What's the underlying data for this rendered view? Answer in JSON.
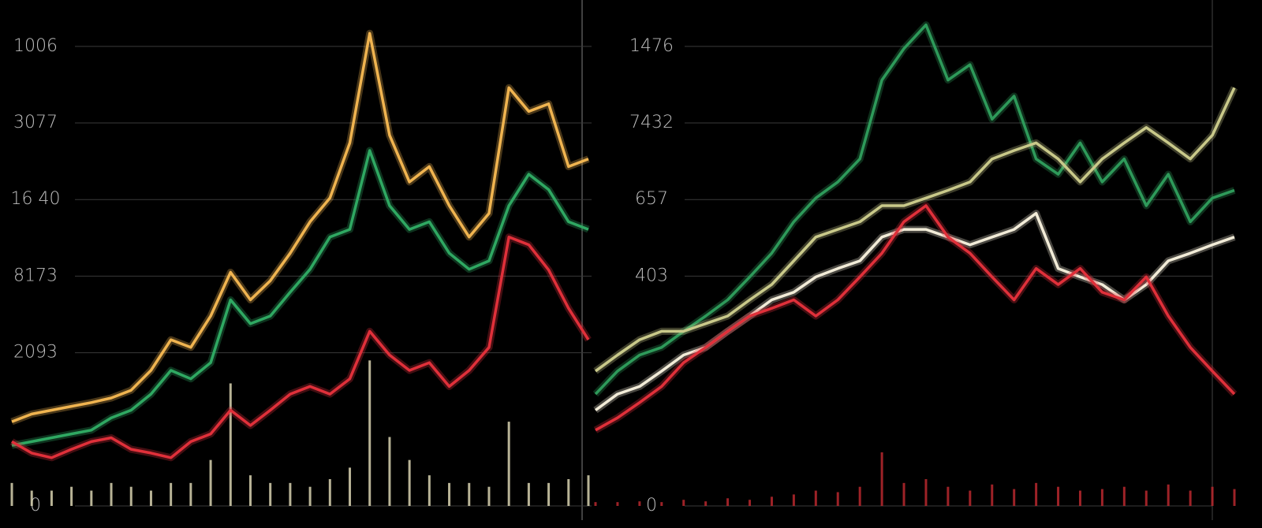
{
  "chart_data": [
    {
      "type": "line",
      "x": [
        0,
        1,
        2,
        3,
        4,
        5,
        6,
        7,
        8,
        9,
        10,
        11,
        12,
        13,
        14,
        15,
        16,
        17,
        18,
        19,
        20,
        21,
        22,
        23,
        24,
        25,
        26,
        27,
        28,
        29
      ],
      "xlim": [
        0,
        29
      ],
      "ylim": [
        0,
        6.6
      ],
      "yticks": [
        0,
        {
          "value": 2,
          "label": "2093"
        },
        {
          "value": 3,
          "label": "8173"
        },
        {
          "value": 4,
          "label": "16 40"
        },
        {
          "value": 5,
          "label": "3077"
        },
        {
          "value": 6,
          "label": "1006"
        }
      ],
      "grid": true,
      "series": [
        {
          "color": "#f0b450",
          "values": [
            1.1,
            1.2,
            1.25,
            1.3,
            1.35,
            1.41,
            1.51,
            1.77,
            2.17,
            2.07,
            2.48,
            3.05,
            2.69,
            2.94,
            3.3,
            3.71,
            4.02,
            4.74,
            6.17,
            4.84,
            4.23,
            4.43,
            3.92,
            3.51,
            3.82,
            5.46,
            5.15,
            5.25,
            4.43,
            4.53
          ]
        },
        {
          "color": "#2fa862",
          "values": [
            0.79,
            0.84,
            0.89,
            0.94,
            0.99,
            1.15,
            1.25,
            1.46,
            1.77,
            1.66,
            1.87,
            2.69,
            2.38,
            2.48,
            2.79,
            3.09,
            3.51,
            3.61,
            4.64,
            3.92,
            3.61,
            3.71,
            3.3,
            3.09,
            3.2,
            3.92,
            4.33,
            4.13,
            3.71,
            3.61
          ]
        },
        {
          "color": "#e0303a",
          "values": [
            0.84,
            0.69,
            0.63,
            0.74,
            0.84,
            0.89,
            0.74,
            0.69,
            0.63,
            0.84,
            0.94,
            1.25,
            1.05,
            1.25,
            1.46,
            1.56,
            1.46,
            1.66,
            2.28,
            1.97,
            1.77,
            1.87,
            1.56,
            1.77,
            2.07,
            3.51,
            3.41,
            3.08,
            2.58,
            2.17
          ]
        }
      ],
      "volume": {
        "color": "#d8d2b0",
        "values": [
          0.3,
          0.2,
          0.2,
          0.25,
          0.2,
          0.3,
          0.25,
          0.2,
          0.3,
          0.3,
          0.6,
          1.6,
          0.4,
          0.3,
          0.3,
          0.25,
          0.35,
          0.5,
          1.9,
          0.9,
          0.6,
          0.4,
          0.3,
          0.3,
          0.25,
          1.1,
          0.3,
          0.3,
          0.35,
          0.4
        ]
      }
    },
    {
      "type": "line",
      "x": [
        0,
        1,
        2,
        3,
        4,
        5,
        6,
        7,
        8,
        9,
        10,
        11,
        12,
        13,
        14,
        15,
        16,
        17,
        18,
        19,
        20,
        21,
        22,
        23,
        24,
        25,
        26,
        27,
        28,
        29
      ],
      "xlim": [
        0,
        29
      ],
      "ylim": [
        0,
        6.6
      ],
      "yticks": [
        0,
        {
          "value": 3,
          "label": "403"
        },
        {
          "value": 4,
          "label": "657"
        },
        {
          "value": 5,
          "label": "7432"
        },
        {
          "value": 6,
          "label": "1476"
        }
      ],
      "grid": true,
      "series": [
        {
          "color": "#2e9a5a",
          "values": [
            1.46,
            1.76,
            1.97,
            2.07,
            2.28,
            2.48,
            2.69,
            2.99,
            3.3,
            3.71,
            4.02,
            4.23,
            4.53,
            5.56,
            5.97,
            6.28,
            5.56,
            5.76,
            5.05,
            5.35,
            4.53,
            4.33,
            4.74,
            4.23,
            4.53,
            3.92,
            4.33,
            3.71,
            4.02,
            4.12
          ]
        },
        {
          "color": "#c9c98a",
          "values": [
            1.76,
            1.97,
            2.17,
            2.28,
            2.28,
            2.38,
            2.48,
            2.69,
            2.89,
            3.2,
            3.51,
            3.61,
            3.71,
            3.92,
            3.92,
            4.02,
            4.12,
            4.23,
            4.53,
            4.64,
            4.74,
            4.53,
            4.23,
            4.53,
            4.74,
            4.94,
            4.74,
            4.53,
            4.84,
            5.46
          ]
        },
        {
          "color": "#f2ecd8",
          "values": [
            1.25,
            1.46,
            1.56,
            1.76,
            1.97,
            2.07,
            2.28,
            2.48,
            2.69,
            2.79,
            2.99,
            3.1,
            3.2,
            3.51,
            3.61,
            3.61,
            3.51,
            3.41,
            3.51,
            3.61,
            3.82,
            3.1,
            2.99,
            2.89,
            2.69,
            2.89,
            3.2,
            3.3,
            3.41,
            3.51
          ]
        },
        {
          "color": "#e0303a",
          "values": [
            0.99,
            1.15,
            1.35,
            1.56,
            1.87,
            2.07,
            2.28,
            2.48,
            2.58,
            2.69,
            2.48,
            2.69,
            2.99,
            3.3,
            3.71,
            3.92,
            3.51,
            3.3,
            2.99,
            2.69,
            3.1,
            2.89,
            3.1,
            2.79,
            2.69,
            2.99,
            2.48,
            2.07,
            1.76,
            1.46
          ]
        }
      ],
      "volume": {
        "color": "#b8282e",
        "values": [
          0.05,
          0.05,
          0.06,
          0.05,
          0.08,
          0.06,
          0.1,
          0.08,
          0.12,
          0.15,
          0.2,
          0.18,
          0.25,
          0.7,
          0.3,
          0.35,
          0.25,
          0.2,
          0.28,
          0.22,
          0.3,
          0.25,
          0.2,
          0.22,
          0.25,
          0.2,
          0.28,
          0.2,
          0.25,
          0.22
        ]
      }
    }
  ]
}
